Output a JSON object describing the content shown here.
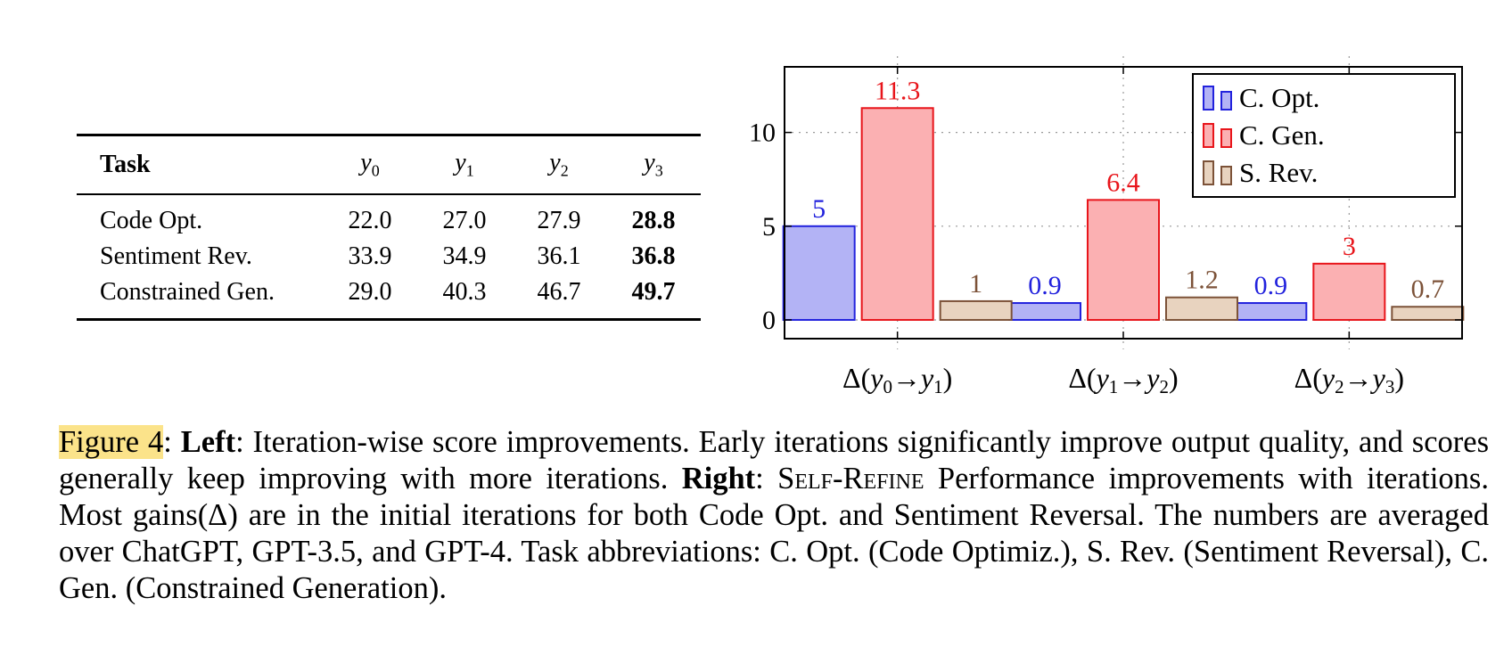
{
  "table": {
    "headers": {
      "task": "Task",
      "y0": "y",
      "y0_sub": "0",
      "y1": "y",
      "y1_sub": "1",
      "y2": "y",
      "y2_sub": "2",
      "y3": "y",
      "y3_sub": "3"
    },
    "rows": [
      {
        "task": "Code Opt.",
        "y0": "22.0",
        "y1": "27.0",
        "y2": "27.9",
        "y3": "28.8"
      },
      {
        "task": "Sentiment Rev.",
        "y0": "33.9",
        "y1": "34.9",
        "y2": "36.1",
        "y3": "36.8"
      },
      {
        "task": "Constrained Gen.",
        "y0": "29.0",
        "y1": "40.3",
        "y2": "46.7",
        "y3": "49.7"
      }
    ]
  },
  "chart_data": {
    "type": "bar",
    "categories": [
      "Δ(y0→y1)",
      "Δ(y1→y2)",
      "Δ(y2→y3)"
    ],
    "series": [
      {
        "name": "C. Opt.",
        "values": [
          5,
          0.9,
          0.9
        ],
        "color": "#2222dd",
        "fill": "#b3b3f5"
      },
      {
        "name": "C. Gen.",
        "values": [
          11.3,
          6.4,
          3
        ],
        "color": "#e8151b",
        "fill": "#fbb0b2"
      },
      {
        "name": "S. Rev.",
        "values": [
          1,
          1.2,
          0.7
        ],
        "color": "#7c5238",
        "fill": "#e8d3bf"
      }
    ],
    "data_labels": [
      [
        "5",
        "0.9",
        "0.9"
      ],
      [
        "11.3",
        "6.4",
        "3"
      ],
      [
        "1",
        "1.2",
        "0.7"
      ]
    ],
    "yticks": [
      0,
      5,
      10
    ],
    "ylim": [
      -1,
      13.5
    ],
    "grid": true,
    "legend_position": "top-right"
  },
  "caption": {
    "label": "Figure 4",
    "left_label": "Left",
    "left_text": ": Iteration-wise score improvements. Early iterations significantly improve output quality, and scores generally keep improving with more iterations. ",
    "right_label": "Right",
    "method": "Self-Refine",
    "right_text": " Performance improvements with iterations. Most gains(Δ) are in the initial iterations for both Code Opt. and Sentiment Reversal. The numbers are averaged over ChatGPT, GPT-3.5, and GPT-4. Task abbreviations: C. Opt. (Code Optimiz.), S. Rev. (Sentiment Reversal), C. Gen. (Constrained Generation)."
  }
}
